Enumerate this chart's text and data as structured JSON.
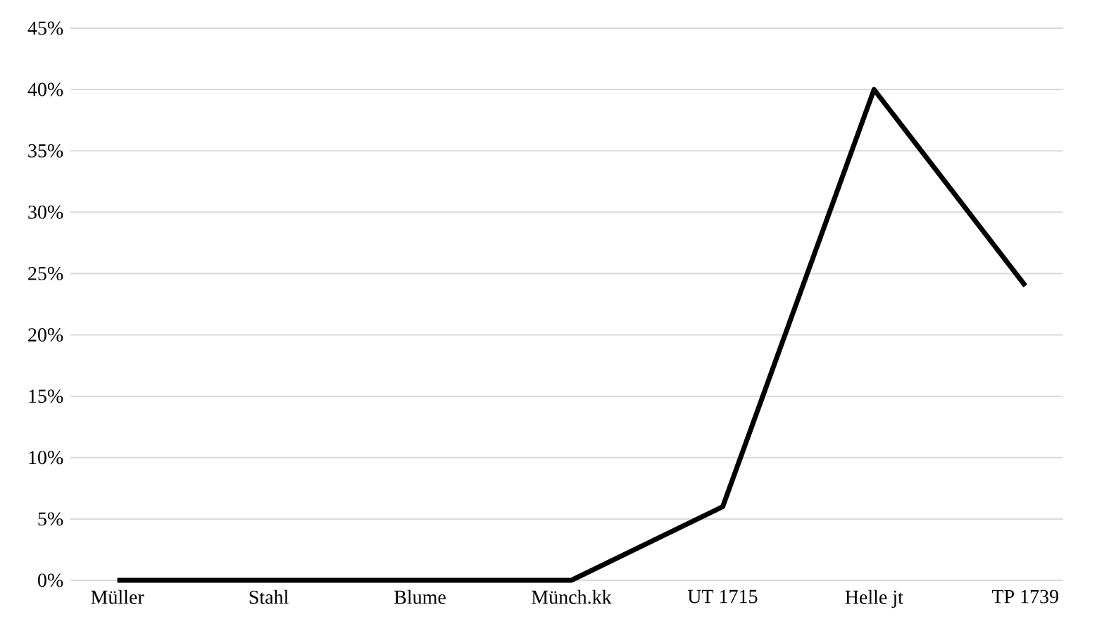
{
  "chart_data": {
    "type": "line",
    "categories": [
      "Müller",
      "Stahl",
      "Blume",
      "Münch.kk",
      "UT 1715",
      "Helle jt",
      "TP 1739"
    ],
    "values": [
      0,
      0,
      0,
      0,
      6,
      40,
      24
    ],
    "color": "#000000",
    "ylim": [
      0,
      45
    ],
    "yticks": [
      {
        "value": 0,
        "label": "0%"
      },
      {
        "value": 5,
        "label": "5%"
      },
      {
        "value": 10,
        "label": "10%"
      },
      {
        "value": 15,
        "label": "15%"
      },
      {
        "value": 20,
        "label": "20%"
      },
      {
        "value": 25,
        "label": "25%"
      },
      {
        "value": 30,
        "label": "30%"
      },
      {
        "value": 35,
        "label": "35%"
      },
      {
        "value": 40,
        "label": "40%"
      },
      {
        "value": 45,
        "label": "45%"
      }
    ],
    "grid": "y",
    "marker": "none",
    "line_style": "solid"
  }
}
